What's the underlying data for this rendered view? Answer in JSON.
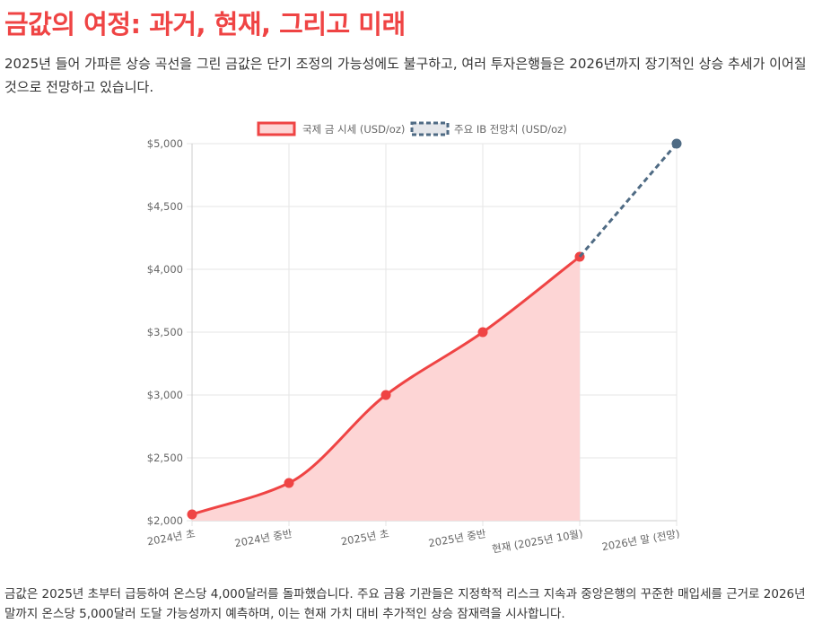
{
  "page": {
    "title": "금값의 여정: 과거, 현재, 그리고 미래",
    "intro": "2025년 들어 가파른 상승 곡선을 그린 금값은 단기 조정의 가능성에도 불구하고, 여러 투자은행들은 2026년까지 장기적인 상승 추세가 이어질 것으로 전망하고 있습니다.",
    "footer": "금값은 2025년 초부터 급등하여 온스당 4,000달러를 돌파했습니다. 주요 금융 기관들은 지정학적 리스크 지속과 중앙은행의 꾸준한 매입세를 근거로 2026년 말까지 온스당 5,000달러 도달 가능성까지 예측하며, 이는 현재 가치 대비 추가적인 상승 잠재력을 시사합니다."
  },
  "chart_data": {
    "type": "line",
    "categories": [
      "2024년 초",
      "2024년 중반",
      "2025년 초",
      "2025년 중반",
      "현재 (2025년 10월)",
      "2026년 말 (전망)"
    ],
    "ylim": [
      2000,
      5000
    ],
    "y_ticks": [
      "$2,000",
      "$2,500",
      "$3,000",
      "$3,500",
      "$4,000",
      "$4,500",
      "$5,000"
    ],
    "y_tick_values": [
      2000,
      2500,
      3000,
      3500,
      4000,
      4500,
      5000
    ],
    "grid": true,
    "legend_position": "top",
    "series": [
      {
        "name": "국제 금 시세 (USD/oz)",
        "values": [
          2050,
          2300,
          3000,
          3500,
          4100,
          null
        ],
        "color": "#ef4444",
        "fill": "#fdd5d5",
        "style": "solid"
      },
      {
        "name": "주요 IB 전망치 (USD/oz)",
        "values": [
          null,
          null,
          null,
          null,
          4100,
          5000
        ],
        "color": "#4f6b84",
        "fill": "#e5e7eb",
        "style": "dashed"
      }
    ]
  }
}
